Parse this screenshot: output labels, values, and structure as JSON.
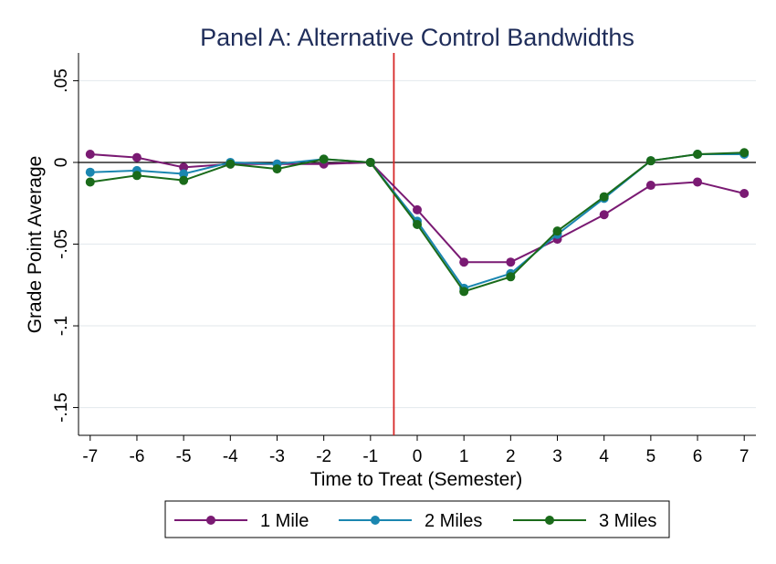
{
  "chart_data": {
    "type": "line",
    "title": "Panel A: Alternative Control Bandwidths",
    "xlabel": "Time to Treat (Semester)",
    "ylabel": "Grade Point Average",
    "x": [
      -7,
      -6,
      -5,
      -4,
      -3,
      -2,
      -1,
      0,
      1,
      2,
      3,
      4,
      5,
      6,
      7
    ],
    "xticks": [
      "-7",
      "-6",
      "-5",
      "-4",
      "-3",
      "-2",
      "-1",
      "0",
      "1",
      "2",
      "3",
      "4",
      "5",
      "6",
      "7"
    ],
    "yticks": [
      {
        "value": 0.05,
        "label": ".05"
      },
      {
        "value": 0,
        "label": "0"
      },
      {
        "value": -0.05,
        "label": "-.05"
      },
      {
        "value": -0.1,
        "label": "-.1"
      },
      {
        "value": -0.15,
        "label": "-.15"
      }
    ],
    "xlim": [
      -7.25,
      7.25
    ],
    "ylim": [
      -0.167,
      0.067
    ],
    "grid": true,
    "reference_lines": {
      "horizontal_y": 0,
      "vertical_x": -0.5
    },
    "colors": {
      "reference_vertical": "#d62728",
      "reference_horizontal": "#000000",
      "grid": "#e6ecef",
      "title": "#1f2d5a"
    },
    "series": [
      {
        "name": "1 Mile",
        "color": "#7a1a73",
        "values": [
          0.005,
          0.003,
          -0.003,
          -0.001,
          -0.001,
          -0.001,
          0.0,
          -0.029,
          -0.061,
          -0.061,
          -0.047,
          -0.032,
          -0.014,
          -0.012,
          -0.019
        ]
      },
      {
        "name": "2 Miles",
        "color": "#1a86b0",
        "values": [
          -0.006,
          -0.005,
          -0.007,
          0.0,
          -0.001,
          0.002,
          0.0,
          -0.036,
          -0.077,
          -0.068,
          -0.044,
          -0.022,
          0.001,
          0.005,
          0.005
        ]
      },
      {
        "name": "3 Miles",
        "color": "#1a6b1a",
        "values": [
          -0.012,
          -0.008,
          -0.011,
          -0.001,
          -0.004,
          0.002,
          0.0,
          -0.038,
          -0.079,
          -0.07,
          -0.042,
          -0.021,
          0.001,
          0.005,
          0.006
        ]
      }
    ],
    "legend": {
      "position": "bottom"
    }
  }
}
